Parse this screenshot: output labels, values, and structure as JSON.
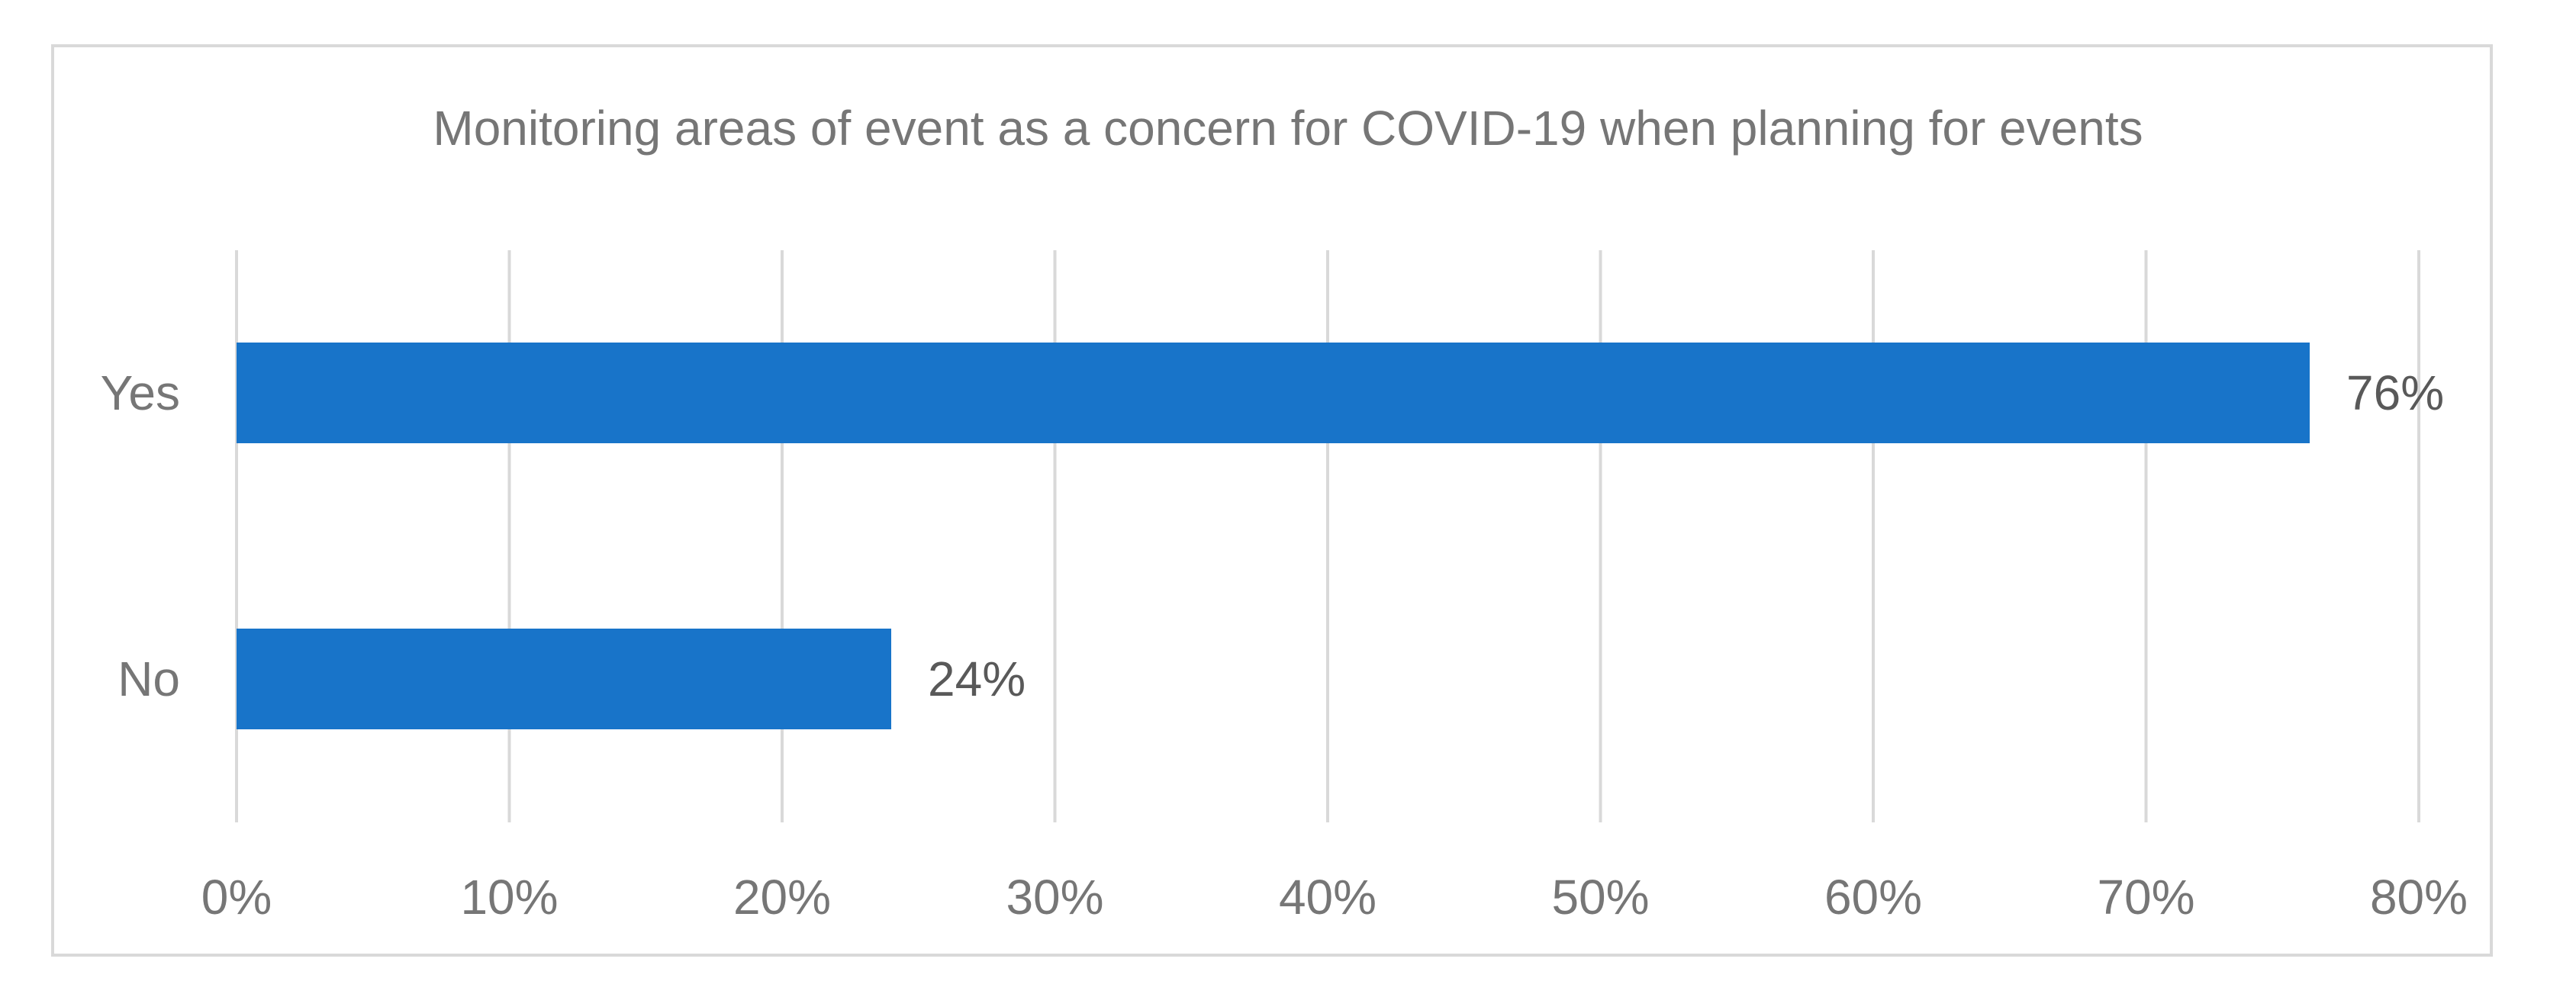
{
  "colors": {
    "bar": "#1874c9",
    "grid": "#d9d9d9",
    "axis_text": "#767676",
    "label_text": "#595959",
    "frame": "#d9d9d9"
  },
  "chart_data": {
    "type": "bar",
    "orientation": "horizontal",
    "title": "Monitoring areas of event as a concern for COVID-19 when planning for events",
    "xlabel": "",
    "ylabel": "",
    "categories": [
      "Yes",
      "No"
    ],
    "values": [
      76,
      24
    ],
    "value_labels": [
      "76%",
      "24%"
    ],
    "xlim": [
      0,
      80
    ],
    "x_ticks": [
      0,
      10,
      20,
      30,
      40,
      50,
      60,
      70,
      80
    ],
    "x_tick_labels": [
      "0%",
      "10%",
      "20%",
      "30%",
      "40%",
      "50%",
      "60%",
      "70%",
      "80%"
    ],
    "grid": true,
    "legend": "none"
  }
}
